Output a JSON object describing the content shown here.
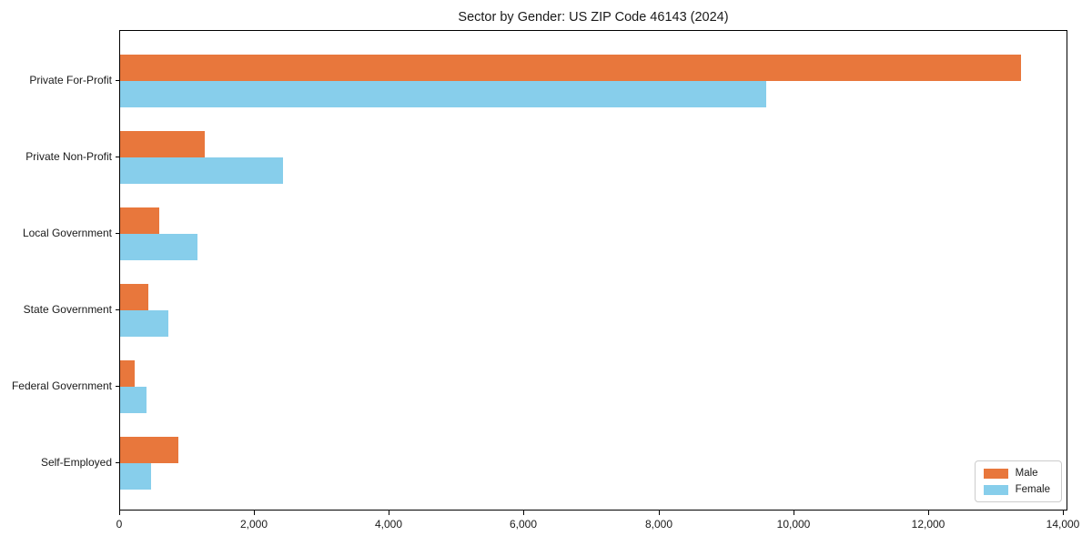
{
  "chart_data": {
    "type": "bar",
    "orientation": "horizontal",
    "title": "Sector by Gender: US ZIP Code 46143 (2024)",
    "categories": [
      "Private For-Profit",
      "Private Non-Profit",
      "Local Government",
      "State Government",
      "Federal Government",
      "Self-Employed"
    ],
    "series": [
      {
        "name": "Male",
        "color": "#e8773c",
        "values": [
          13360,
          1260,
          580,
          420,
          210,
          870
        ]
      },
      {
        "name": "Female",
        "color": "#87ceeb",
        "values": [
          9580,
          2410,
          1150,
          720,
          390,
          460
        ]
      }
    ],
    "xlabel": "",
    "ylabel": "",
    "xlim": [
      0,
      14000
    ],
    "x_ticks": [
      0,
      2000,
      4000,
      6000,
      8000,
      10000,
      12000,
      14000
    ],
    "x_tick_labels": [
      "0",
      "2,000",
      "4,000",
      "6,000",
      "8,000",
      "10,000",
      "12,000",
      "14,000"
    ],
    "legend_position": "lower right",
    "grid": false,
    "bar_edge_color": "none",
    "axes_border_color": "#000000"
  }
}
